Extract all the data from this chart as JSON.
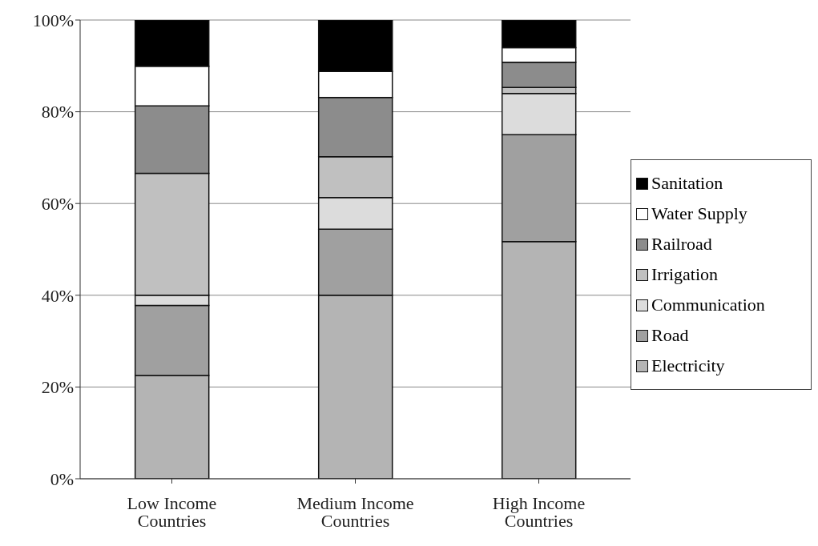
{
  "chart_data": {
    "type": "bar",
    "stacked": true,
    "categories": [
      "Low Income Countries",
      "Medium Income Countries",
      "High Income Countries"
    ],
    "series": [
      {
        "name": "Electricity",
        "color": "#b4b4b4",
        "values": [
          22.5,
          40,
          51.7
        ]
      },
      {
        "name": "Road",
        "color": "#a0a0a0",
        "values": [
          15.3,
          14.4,
          23.3
        ]
      },
      {
        "name": "Communication",
        "color": "#dcdcdc",
        "values": [
          2.2,
          6.9,
          9.0
        ]
      },
      {
        "name": "Irrigation",
        "color": "#c0c0c0",
        "values": [
          26.6,
          8.9,
          1.3
        ]
      },
      {
        "name": "Railroad",
        "color": "#8c8c8c",
        "values": [
          14.7,
          12.9,
          5.5
        ]
      },
      {
        "name": "Water Supply",
        "color": "#ffffff",
        "values": [
          8.6,
          5.7,
          3.2
        ]
      },
      {
        "name": "Sanitation",
        "color": "#000000",
        "values": [
          10.1,
          11.2,
          6.0
        ]
      }
    ],
    "ylim": [
      0,
      100
    ],
    "yticks": [
      {
        "value": 0,
        "label": "0%"
      },
      {
        "value": 20,
        "label": "20%"
      },
      {
        "value": 40,
        "label": "40%"
      },
      {
        "value": 60,
        "label": "60%"
      },
      {
        "value": 80,
        "label": "80%"
      },
      {
        "value": 100,
        "label": "100%"
      }
    ],
    "grid": "y",
    "legend": "right"
  }
}
